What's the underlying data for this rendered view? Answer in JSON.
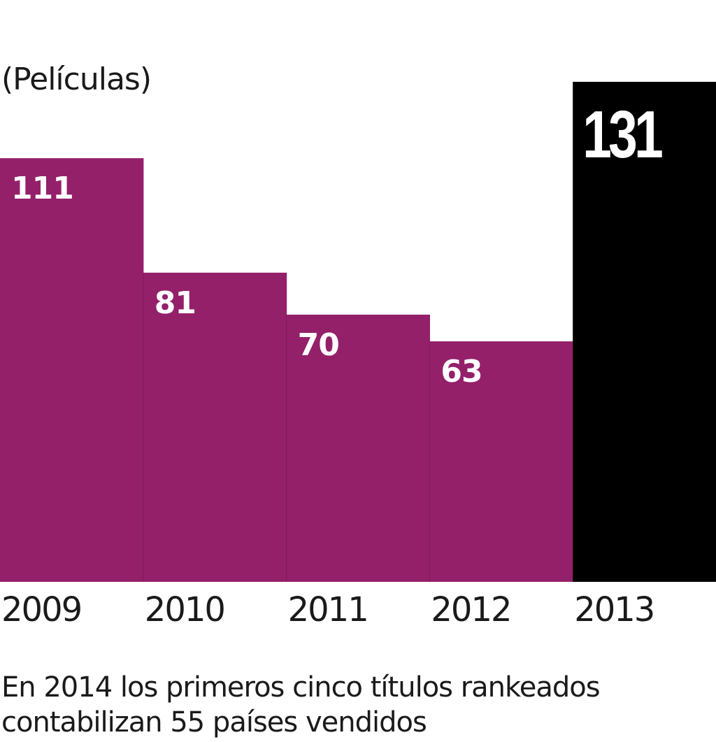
{
  "chart_data": {
    "type": "bar",
    "unit_label": "(Películas)",
    "categories": [
      "2009",
      "2010",
      "2011",
      "2012",
      "2013"
    ],
    "values": [
      111,
      81,
      70,
      63,
      131
    ],
    "value_labels": [
      "111",
      "81",
      "70",
      "63",
      "131"
    ],
    "highlight_index": 4,
    "ylim": [
      0,
      131
    ],
    "colors": {
      "bar": "#94206a",
      "highlight": "#000000",
      "label_on_bar": "#ffffff",
      "axis_text": "#1a1a1a"
    },
    "grid": false,
    "legend": "none"
  },
  "footnote": {
    "line1": "En 2014 los primeros cinco títulos rankeados",
    "line2": "contabilizan 55 países vendidos"
  }
}
